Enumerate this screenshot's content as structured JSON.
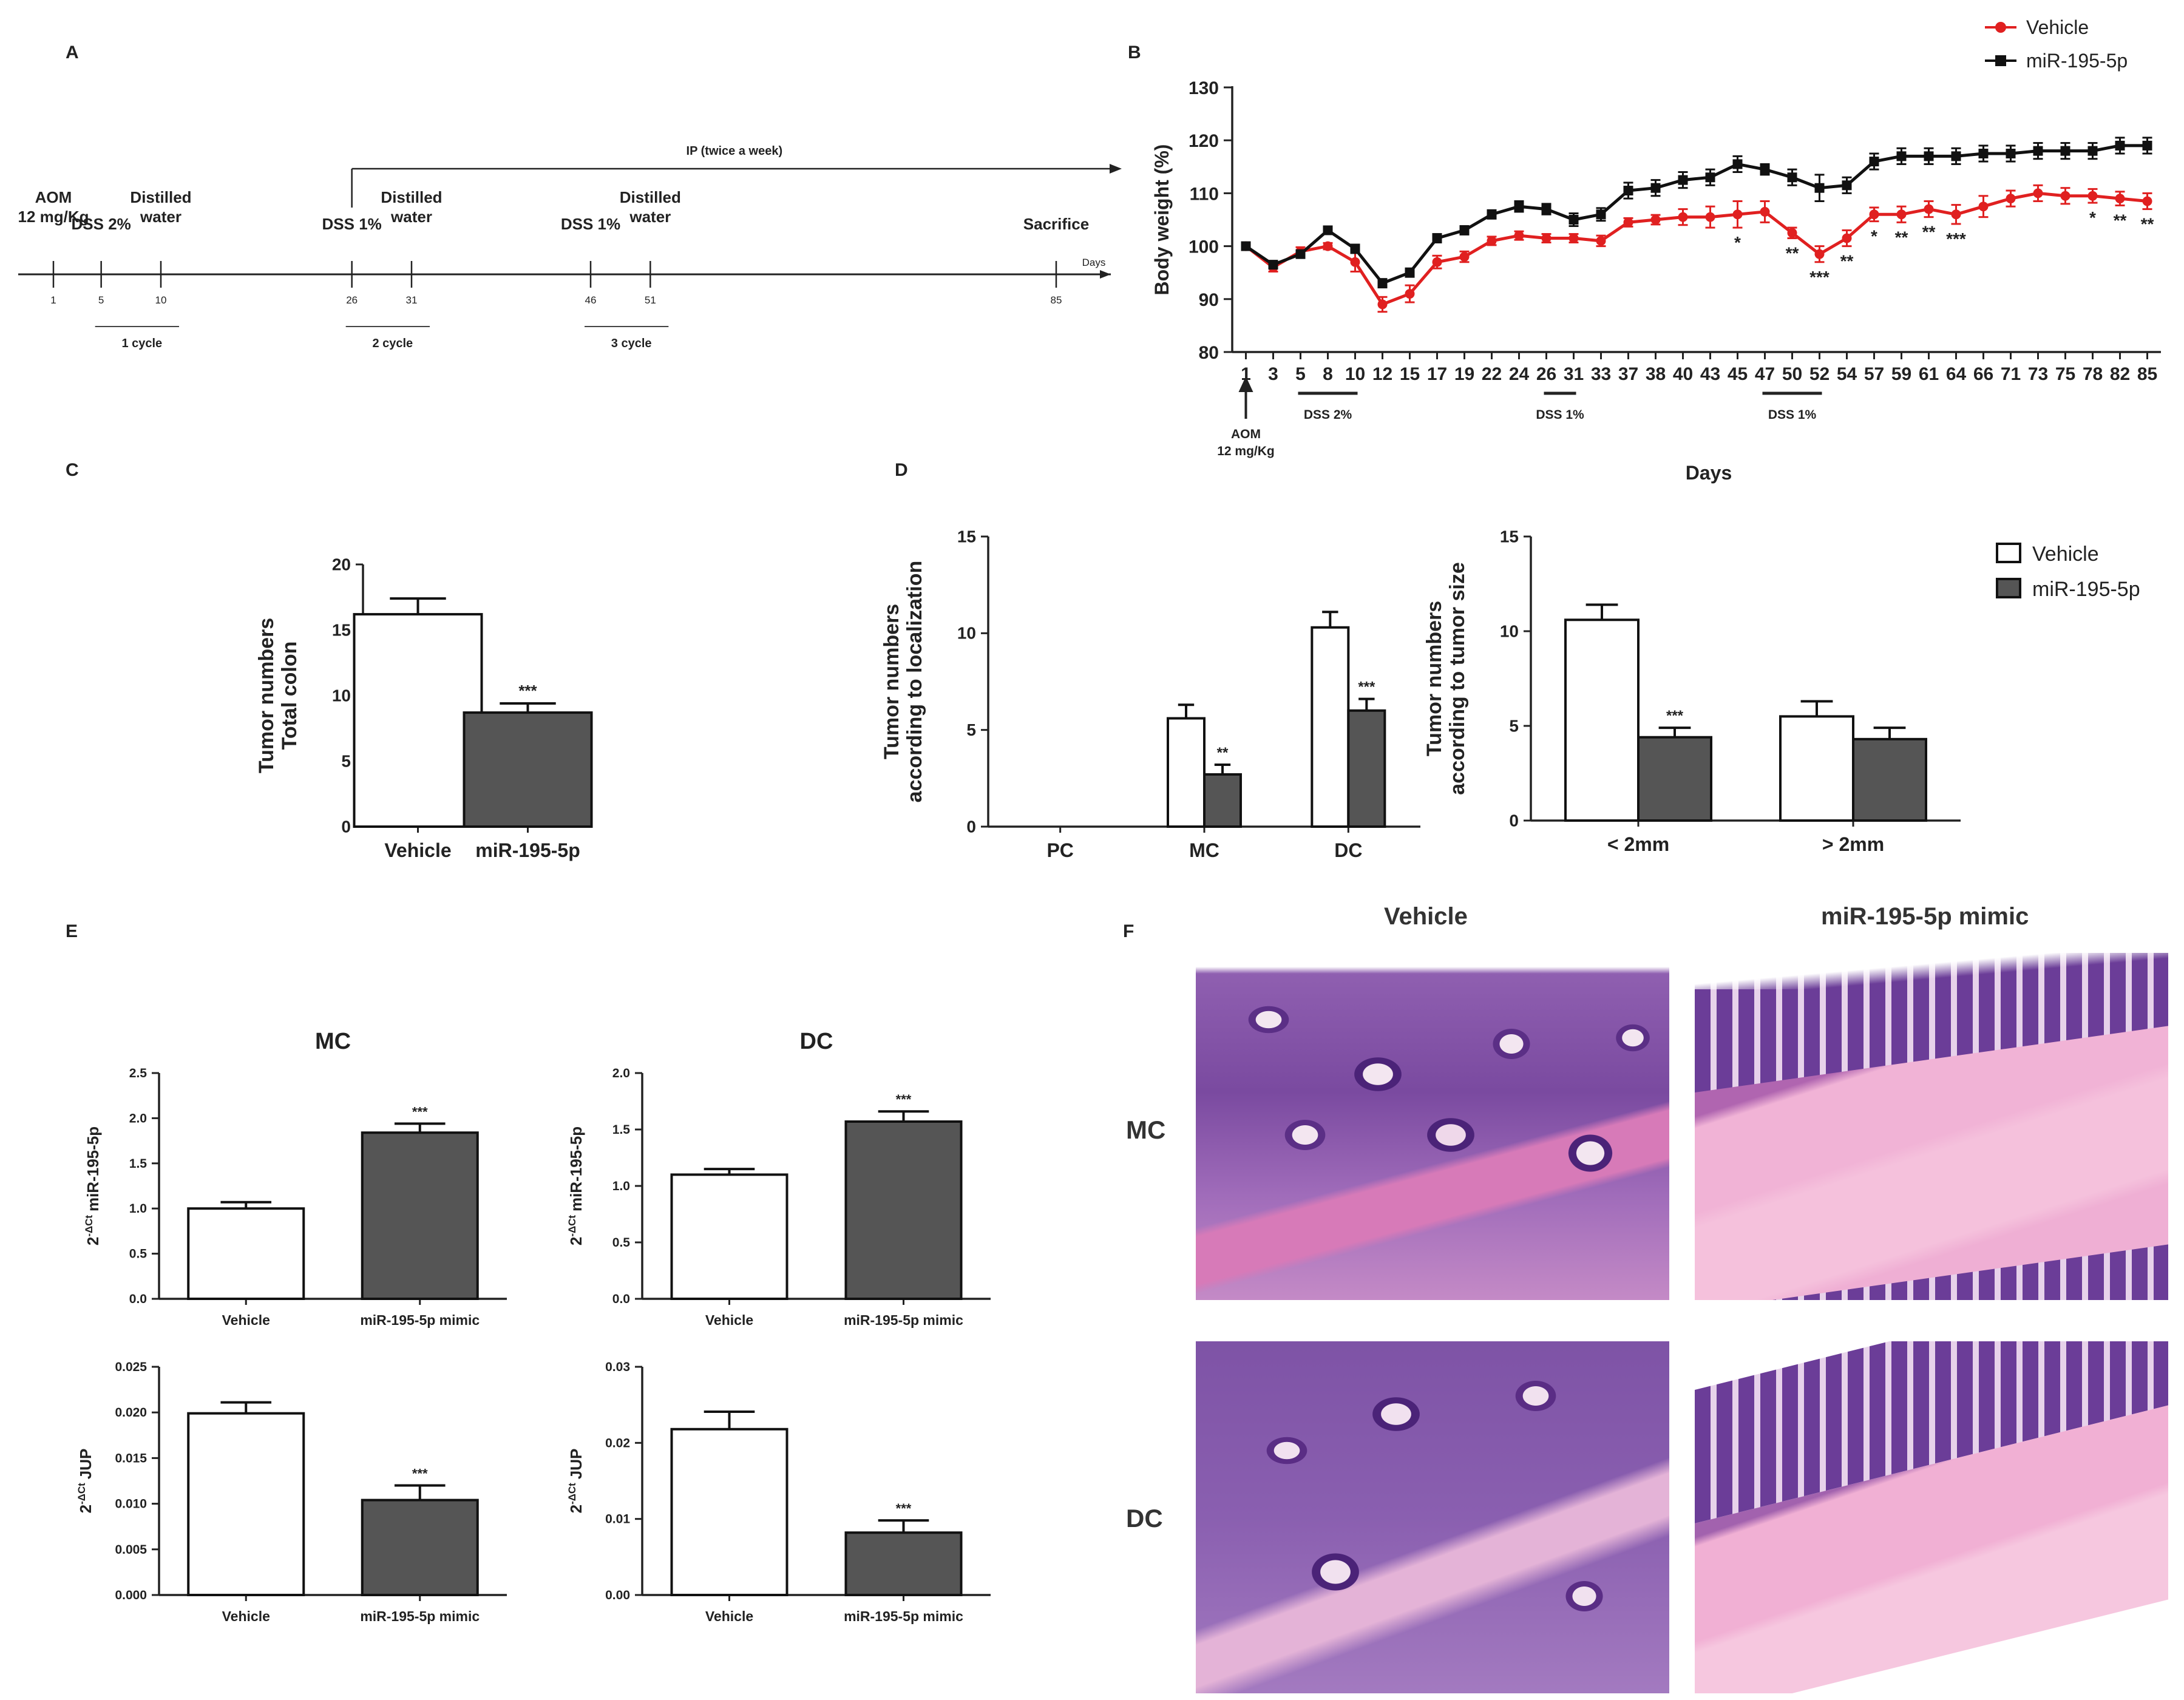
{
  "colors": {
    "vehicle": "#e02020",
    "mir": "#111111",
    "bar_mir": "#555555",
    "bar_vehicle": "#ffffff"
  },
  "panels": {
    "a": "A",
    "b": "B",
    "c": "C",
    "d": "D",
    "e": "E",
    "f": "F"
  },
  "timeline": {
    "ip_label": "IP (twice a week)",
    "days_label": "Days",
    "events": [
      {
        "day": "1",
        "line1": "AOM",
        "line2": "12 mg/Kg"
      },
      {
        "day": "5",
        "line1": "DSS 2%",
        "line2": ""
      },
      {
        "day": "10",
        "line1": "Distilled",
        "line2": "water"
      },
      {
        "day": "26",
        "line1": "DSS 1%",
        "line2": ""
      },
      {
        "day": "31",
        "line1": "Distilled",
        "line2": "water"
      },
      {
        "day": "46",
        "line1": "DSS 1%",
        "line2": ""
      },
      {
        "day": "51",
        "line1": "Distilled",
        "line2": "water"
      },
      {
        "day": "85",
        "line1": "Sacrifice",
        "line2": ""
      }
    ],
    "cycles": [
      "1 cycle",
      "2 cycle",
      "3 cycle"
    ]
  },
  "chart_data": [
    {
      "panel": "B",
      "type": "line",
      "ylabel": "Body weight (%)",
      "xlabel": "Days",
      "ylim": [
        80,
        130
      ],
      "yticks": [
        "80",
        "90",
        "100",
        "110",
        "120",
        "130"
      ],
      "categories": [
        "1",
        "3",
        "5",
        "8",
        "10",
        "12",
        "15",
        "17",
        "19",
        "22",
        "24",
        "26",
        "31",
        "33",
        "37",
        "38",
        "40",
        "43",
        "45",
        "47",
        "50",
        "52",
        "54",
        "57",
        "59",
        "61",
        "64",
        "66",
        "71",
        "73",
        "75",
        "78",
        "82",
        "85"
      ],
      "series": [
        {
          "name": "Vehicle",
          "values": [
            100,
            96,
            99,
            100,
            97,
            89,
            91,
            97,
            98,
            101,
            102,
            101.5,
            101.5,
            101,
            104.5,
            105,
            105.5,
            105.5,
            106,
            106.5,
            102.5,
            98.5,
            101.5,
            106,
            106,
            107,
            106,
            107.5,
            109,
            110,
            109.5,
            109.5,
            109,
            108.5
          ]
        },
        {
          "name": "miR-195-5p",
          "values": [
            100,
            96.5,
            98.5,
            103,
            99.5,
            93,
            95,
            101.5,
            103,
            106,
            107.5,
            107,
            105,
            106,
            110.5,
            111,
            112.5,
            113,
            115.5,
            114.5,
            113,
            111,
            111.5,
            116,
            117,
            117,
            117,
            117.5,
            117.5,
            118,
            118,
            118,
            119,
            119
          ]
        }
      ],
      "error_vehicle": [
        0.5,
        0.8,
        0.8,
        0.6,
        1.8,
        1.4,
        1.6,
        1.2,
        1,
        0.8,
        0.8,
        0.8,
        0.8,
        1,
        0.8,
        0.9,
        1.5,
        2,
        2.5,
        2,
        1,
        1.5,
        1.5,
        1.3,
        1.5,
        1.5,
        1.8,
        2,
        1.5,
        1.5,
        1.5,
        1.3,
        1.3,
        1.5
      ],
      "error_mir": [
        0.5,
        0.6,
        0.6,
        0.6,
        0.8,
        0.8,
        0.8,
        0.8,
        0.8,
        0.8,
        1,
        1,
        1.2,
        1.2,
        1.5,
        1.5,
        1.5,
        1.5,
        1.5,
        1,
        1.5,
        2.5,
        1.5,
        1.5,
        1.5,
        1.5,
        1.5,
        1.5,
        1.5,
        1.5,
        1.5,
        1.5,
        1.5,
        1.5
      ],
      "significance": [
        {
          "day": "45",
          "label": "*"
        },
        {
          "day": "50",
          "label": "**"
        },
        {
          "day": "52",
          "label": "***"
        },
        {
          "day": "54",
          "label": "**"
        },
        {
          "day": "57",
          "label": "*"
        },
        {
          "day": "59",
          "label": "**"
        },
        {
          "day": "61",
          "label": "**"
        },
        {
          "day": "64",
          "label": "***"
        },
        {
          "day": "78",
          "label": "*"
        },
        {
          "day": "82",
          "label": "**"
        },
        {
          "day": "85",
          "label": "**"
        }
      ],
      "annotations": [
        {
          "text": "DSS 2%",
          "from": "5",
          "to": "10"
        },
        {
          "text": "DSS 1%",
          "from": "26",
          "to": "31"
        },
        {
          "text": "DSS 1%",
          "from": "47",
          "to": "52"
        }
      ],
      "aom_line1": "AOM",
      "aom_line2": "12 mg/Kg",
      "legend": [
        "Vehicle",
        "miR-195-5p"
      ]
    },
    {
      "panel": "C",
      "type": "bar",
      "ylabel_line1": "Tumor numbers",
      "ylabel_line2": "Total colon",
      "ylim": [
        0,
        20
      ],
      "yticks": [
        "0",
        "5",
        "10",
        "15",
        "20"
      ],
      "categories": [
        "Vehicle",
        "miR-195-5p"
      ],
      "values": [
        16.2,
        8.7
      ],
      "errors": [
        1.2,
        0.7
      ],
      "stars": [
        "",
        "***"
      ]
    },
    {
      "panel": "D1",
      "type": "bar",
      "ylabel_line1": "Tumor numbers",
      "ylabel_line2": "according to localization",
      "ylim": [
        0,
        15
      ],
      "yticks": [
        "0",
        "5",
        "10",
        "15"
      ],
      "categories": [
        "PC",
        "MC",
        "DC"
      ],
      "series": [
        {
          "name": "Vehicle",
          "values": [
            0,
            5.6,
            10.3
          ]
        },
        {
          "name": "miR-195-5p",
          "values": [
            0,
            2.7,
            6.0
          ]
        }
      ],
      "errors": [
        [
          0,
          0.7,
          0.8
        ],
        [
          0,
          0.5,
          0.6
        ]
      ],
      "stars": [
        "",
        "**",
        "***"
      ]
    },
    {
      "panel": "D2",
      "type": "bar",
      "ylabel_line1": "Tumor numbers",
      "ylabel_line2": "according to tumor size",
      "ylim": [
        0,
        15
      ],
      "yticks": [
        "0",
        "5",
        "10",
        "15"
      ],
      "categories": [
        "< 2mm",
        "> 2mm"
      ],
      "series": [
        {
          "name": "Vehicle",
          "values": [
            10.6,
            5.5
          ]
        },
        {
          "name": "miR-195-5p",
          "values": [
            4.4,
            4.3
          ]
        }
      ],
      "errors": [
        [
          0.8,
          0.8
        ],
        [
          0.5,
          0.6
        ]
      ],
      "stars": [
        "***",
        ""
      ],
      "legend": [
        "Vehicle",
        "miR-195-5p"
      ]
    },
    {
      "panel": "E1",
      "type": "bar",
      "title": "MC",
      "ylabel_pre": "2",
      "ylabel_sup": "-ΔCt",
      "ylabel_post": "miR-195-5p",
      "ylim": [
        0,
        2.5
      ],
      "yticks": [
        "0.0",
        "0.5",
        "1.0",
        "1.5",
        "2.0",
        "2.5"
      ],
      "categories": [
        "Vehicle",
        "miR-195-5p mimic"
      ],
      "values": [
        1.0,
        1.84
      ],
      "errors": [
        0.07,
        0.1
      ],
      "stars": [
        "",
        "***"
      ]
    },
    {
      "panel": "E2",
      "type": "bar",
      "title": "DC",
      "ylabel_pre": "2",
      "ylabel_sup": "-ΔCt",
      "ylabel_post": "miR-195-5p",
      "ylim": [
        0,
        2.0
      ],
      "yticks": [
        "0.0",
        "0.5",
        "1.0",
        "1.5",
        "2.0"
      ],
      "categories": [
        "Vehicle",
        "miR-195-5p mimic"
      ],
      "values": [
        1.1,
        1.57
      ],
      "errors": [
        0.05,
        0.09
      ],
      "stars": [
        "",
        "***"
      ]
    },
    {
      "panel": "E3",
      "type": "bar",
      "title": "",
      "ylabel_pre": "2",
      "ylabel_sup": "-ΔCt",
      "ylabel_post": "JUP",
      "ylim": [
        0,
        0.025
      ],
      "yticks": [
        "0.000",
        "0.005",
        "0.010",
        "0.015",
        "0.020",
        "0.025"
      ],
      "categories": [
        "Vehicle",
        "miR-195-5p mimic"
      ],
      "values": [
        0.0199,
        0.0104
      ],
      "errors": [
        0.0012,
        0.0016
      ],
      "stars": [
        "",
        "***"
      ]
    },
    {
      "panel": "E4",
      "type": "bar",
      "title": "",
      "ylabel_pre": "2",
      "ylabel_sup": "-ΔCt",
      "ylabel_post": "JUP",
      "ylim": [
        0,
        0.03
      ],
      "yticks": [
        "0.00",
        "0.01",
        "0.02",
        "0.03"
      ],
      "categories": [
        "Vehicle",
        "miR-195-5p mimic"
      ],
      "values": [
        0.0218,
        0.0082
      ],
      "errors": [
        0.0023,
        0.0016
      ],
      "stars": [
        "",
        "***"
      ]
    }
  ],
  "histology": {
    "col_vehicle": "Vehicle",
    "col_mimic": "miR-195-5p mimic",
    "row_mc": "MC",
    "row_dc": "DC"
  }
}
